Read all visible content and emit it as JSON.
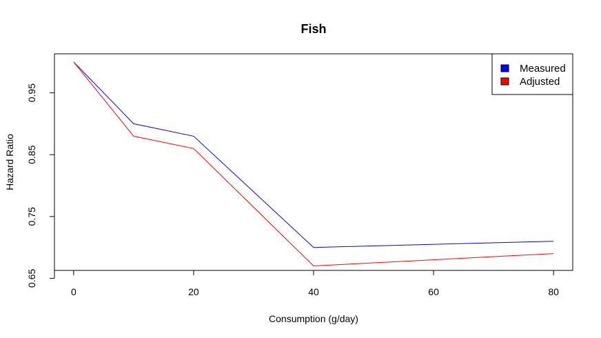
{
  "chart_data": {
    "type": "line",
    "title": "Fish",
    "xlabel": "Consumption (g/day)",
    "ylabel": "Hazard Ratio",
    "x": [
      0,
      10,
      20,
      40,
      80
    ],
    "series": [
      {
        "name": "Measured",
        "color": "#0000ff",
        "values": [
          1.0,
          0.9,
          0.88,
          0.7,
          0.71
        ]
      },
      {
        "name": "Adjusted",
        "color": "#ff0000",
        "values": [
          1.0,
          0.88,
          0.86,
          0.67,
          0.69
        ]
      }
    ],
    "xlim": [
      -3.2,
      83.2
    ],
    "ylim": [
      0.6628,
      1.0132
    ],
    "xticks": [
      0,
      20,
      40,
      60,
      80
    ],
    "xtick_labels": [
      "0",
      "20",
      "40",
      "60",
      "80"
    ],
    "yticks": [
      0.65,
      0.75,
      0.85,
      0.95
    ],
    "ytick_labels": [
      "0.65",
      "0.75",
      "0.85",
      "0.95"
    ],
    "legend_position": "top-right",
    "grid": false
  }
}
